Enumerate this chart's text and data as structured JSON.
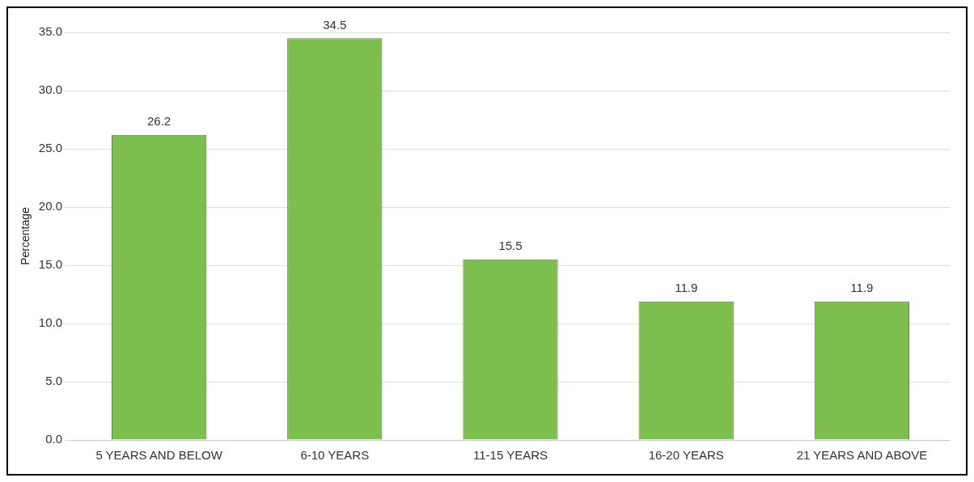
{
  "chart_data": {
    "type": "bar",
    "ylabel": "Percentage",
    "categories": [
      "5 YEARS AND BELOW",
      "6-10 YEARS",
      "11-15 YEARS",
      "16-20 YEARS",
      "21 YEARS AND ABOVE"
    ],
    "values": [
      26.2,
      34.5,
      15.5,
      11.9,
      11.9
    ],
    "color": "#7dbf4f",
    "ylim": [
      0,
      35
    ],
    "yticks": [
      {
        "value": 0,
        "label": "0.0"
      },
      {
        "value": 5,
        "label": "5.0"
      },
      {
        "value": 10,
        "label": "10.0"
      },
      {
        "value": 15,
        "label": "15.0"
      },
      {
        "value": 20,
        "label": "20.0"
      },
      {
        "value": 25,
        "label": "25.0"
      },
      {
        "value": 30,
        "label": "30.0"
      },
      {
        "value": 35,
        "label": "35.0"
      }
    ],
    "grid": "y",
    "data_labels": true
  }
}
